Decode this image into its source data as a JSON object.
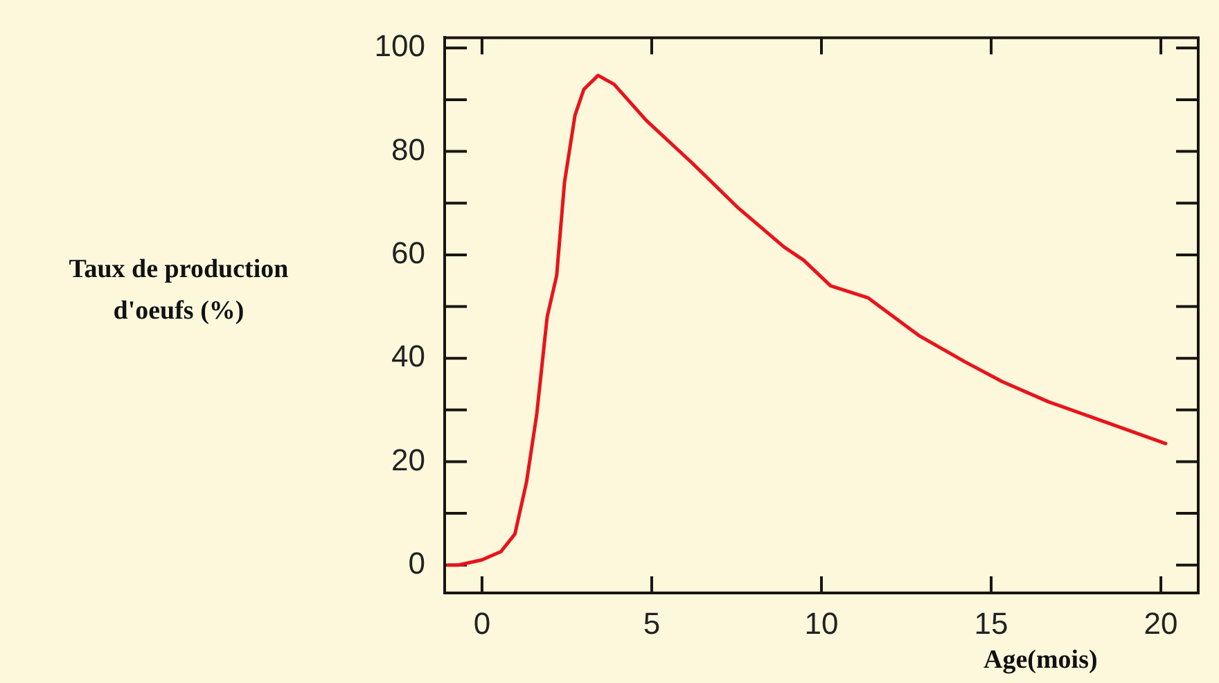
{
  "chart_data": {
    "type": "line",
    "xlabel": "Age(mois)",
    "ylabel": "Taux de production d'oeufs (%)",
    "series": [
      {
        "color": "#e8141c",
        "x": [
          -1.0,
          -0.7,
          0,
          0.56,
          0.97,
          1.31,
          1.61,
          1.92,
          2.2,
          2.43,
          2.74,
          3.0,
          3.42,
          3.89,
          4.84,
          6.2,
          7.56,
          8.9,
          9.47,
          10.27,
          11.37,
          12.87,
          14.23,
          15.32,
          16.68,
          18.3,
          20.14
        ],
        "values": [
          0,
          0,
          1,
          2.6,
          6,
          16,
          29,
          48,
          56,
          74,
          87,
          92,
          94.7,
          93,
          86,
          77.7,
          69,
          61.5,
          59,
          54,
          51.7,
          44.4,
          39.3,
          35.5,
          31.6,
          27.8,
          23.5
        ]
      }
    ],
    "xlim": [
      -1.1,
      21.1
    ],
    "xticks": [
      0,
      5,
      10,
      15,
      20
    ],
    "ylim": [
      -5.4,
      102
    ],
    "yticks": [
      0,
      {
        "value": 10,
        "label": null
      },
      20,
      {
        "value": 30,
        "label": null
      },
      40,
      {
        "value": 50,
        "label": null
      },
      60,
      {
        "value": 70,
        "label": null
      },
      80,
      {
        "value": 90,
        "label": null
      },
      100
    ],
    "grid": false,
    "legend": false,
    "marker": "none",
    "line_style": "solid"
  }
}
